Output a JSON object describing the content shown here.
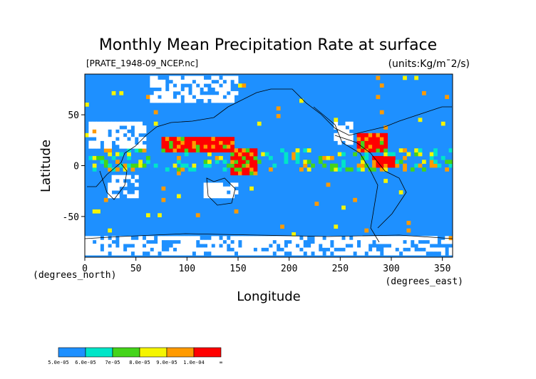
{
  "chart_data": {
    "type": "heatmap",
    "title": "Monthly Mean Precipitation Rate at surface",
    "subtitle": "[PRATE_1948-09_NCEP.nc]",
    "units": "(units:Kg/m¯2/s)",
    "xlabel": "Longitude",
    "ylabel": "Latitude",
    "x_unit_label": "(degrees_east)",
    "y_unit_label": "(degrees_north)",
    "xlim": [
      0,
      360
    ],
    "ylim": [
      -90,
      90
    ],
    "x_ticks": [
      0,
      50,
      100,
      150,
      200,
      250,
      300,
      350
    ],
    "y_ticks": [
      -50,
      0,
      50
    ],
    "grid": false,
    "colorbar": {
      "labels": [
        "5.0e-05",
        "6.0e-05",
        "7e-05",
        "8.0e-05",
        "9.0e-05",
        "1.0e-04",
        "∞"
      ],
      "colors": [
        "#1e90ff",
        "#00e5c8",
        "#44d41a",
        "#f5f500",
        "#ff9a00",
        "#ff0000"
      ]
    },
    "heavy_regions": [
      {
        "lon": [
          75,
          120
        ],
        "lat": [
          12,
          28
        ],
        "level": 5
      },
      {
        "lon": [
          115,
          145
        ],
        "lat": [
          12,
          25
        ],
        "level": 5
      },
      {
        "lon": [
          140,
          165
        ],
        "lat": [
          -10,
          15
        ],
        "level": 5
      },
      {
        "lon": [
          265,
          295
        ],
        "lat": [
          10,
          30
        ],
        "level": 5
      },
      {
        "lon": [
          280,
          300
        ],
        "lat": [
          -5,
          8
        ],
        "level": 5
      }
    ]
  }
}
